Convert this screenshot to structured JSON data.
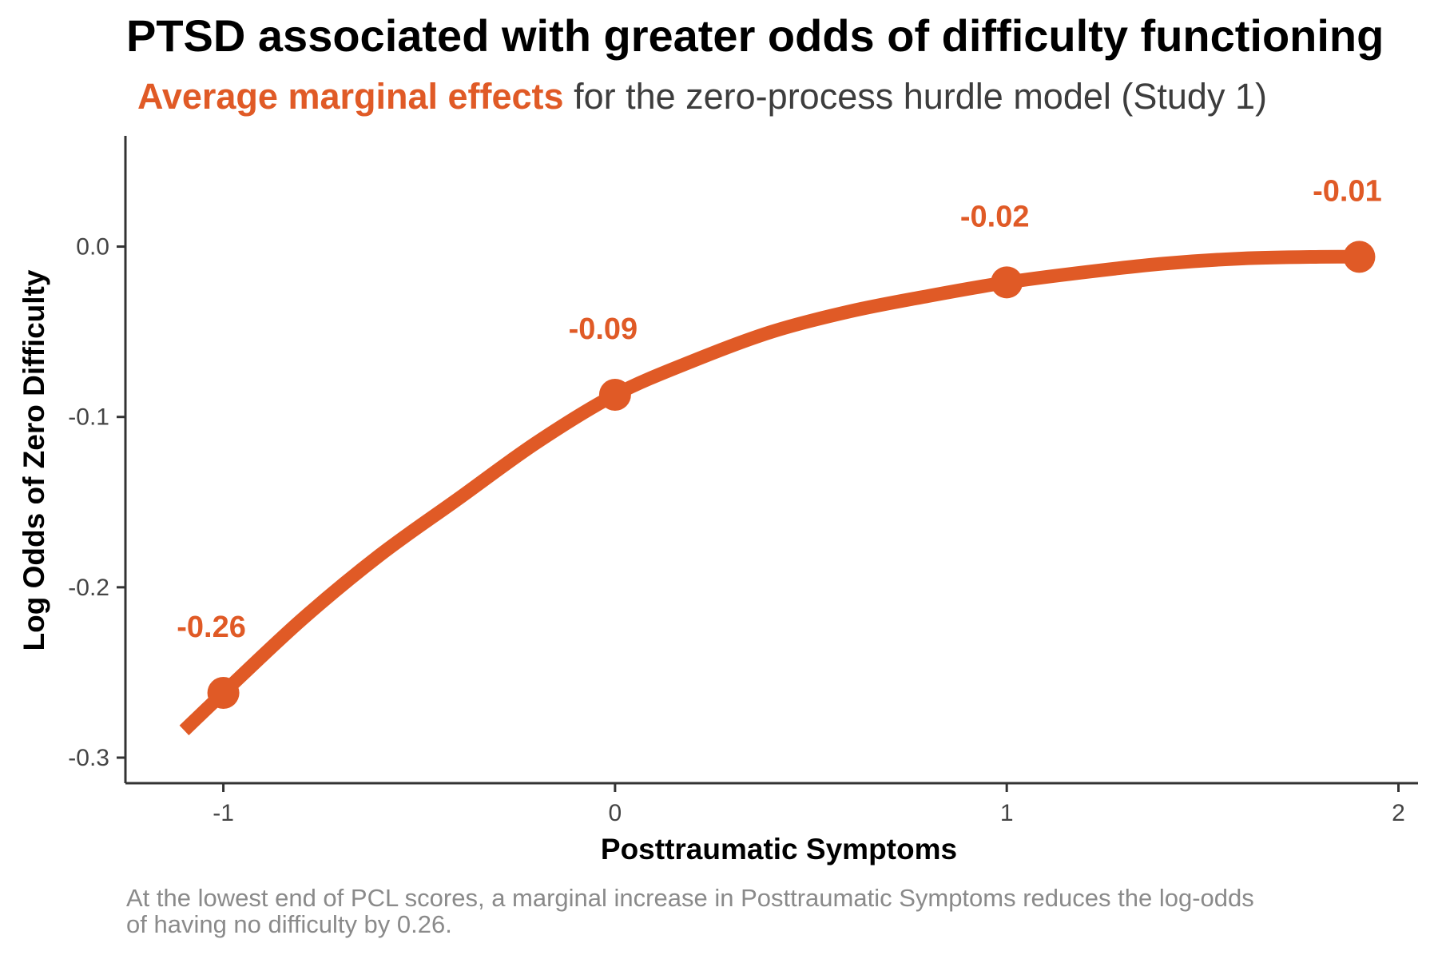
{
  "chart_data": {
    "type": "line",
    "title": "PTSD associated with greater odds of difficulty functioning",
    "subtitle_highlight": "Average marginal effects",
    "subtitle_rest": " for the zero-process hurdle model (Study 1)",
    "xlabel": "Posttraumatic Symptoms",
    "ylabel": "Log Odds of Zero Difficulty",
    "caption_lines": [
      "At the lowest end of PCL scores, a marginal increase in Posttraumatic Symptoms reduces the log-odds",
      "of having no difficulty by 0.26."
    ],
    "xlim": [
      -1.25,
      2.05
    ],
    "ylim": [
      -0.315,
      0.065
    ],
    "x_ticks": [
      -1,
      0,
      1,
      2
    ],
    "x_tick_labels": [
      "-1",
      "0",
      "1",
      "2"
    ],
    "y_ticks": [
      -0.3,
      -0.2,
      -0.1,
      0.0
    ],
    "y_tick_labels": [
      "-0.3",
      "-0.2",
      "-0.1",
      "0.0"
    ],
    "grid": false,
    "accent_color": "#e05a26",
    "series": [
      {
        "curve": {
          "x": [
            -1.1,
            -1.0,
            -0.8,
            -0.6,
            -0.4,
            -0.2,
            0.0,
            0.2,
            0.4,
            0.6,
            0.8,
            1.0,
            1.2,
            1.4,
            1.6,
            1.8,
            1.9
          ],
          "y": [
            -0.284,
            -0.262,
            -0.219,
            -0.181,
            -0.148,
            -0.115,
            -0.087,
            -0.067,
            -0.05,
            -0.038,
            -0.029,
            -0.021,
            -0.015,
            -0.01,
            -0.007,
            -0.006,
            -0.006
          ]
        },
        "points": [
          {
            "x": -1.0,
            "y": -0.262,
            "label": "-0.26"
          },
          {
            "x": 0.0,
            "y": -0.087,
            "label": "-0.09"
          },
          {
            "x": 1.0,
            "y": -0.021,
            "label": "-0.02"
          },
          {
            "x": 1.9,
            "y": -0.006,
            "label": "-0.01"
          }
        ]
      }
    ]
  }
}
